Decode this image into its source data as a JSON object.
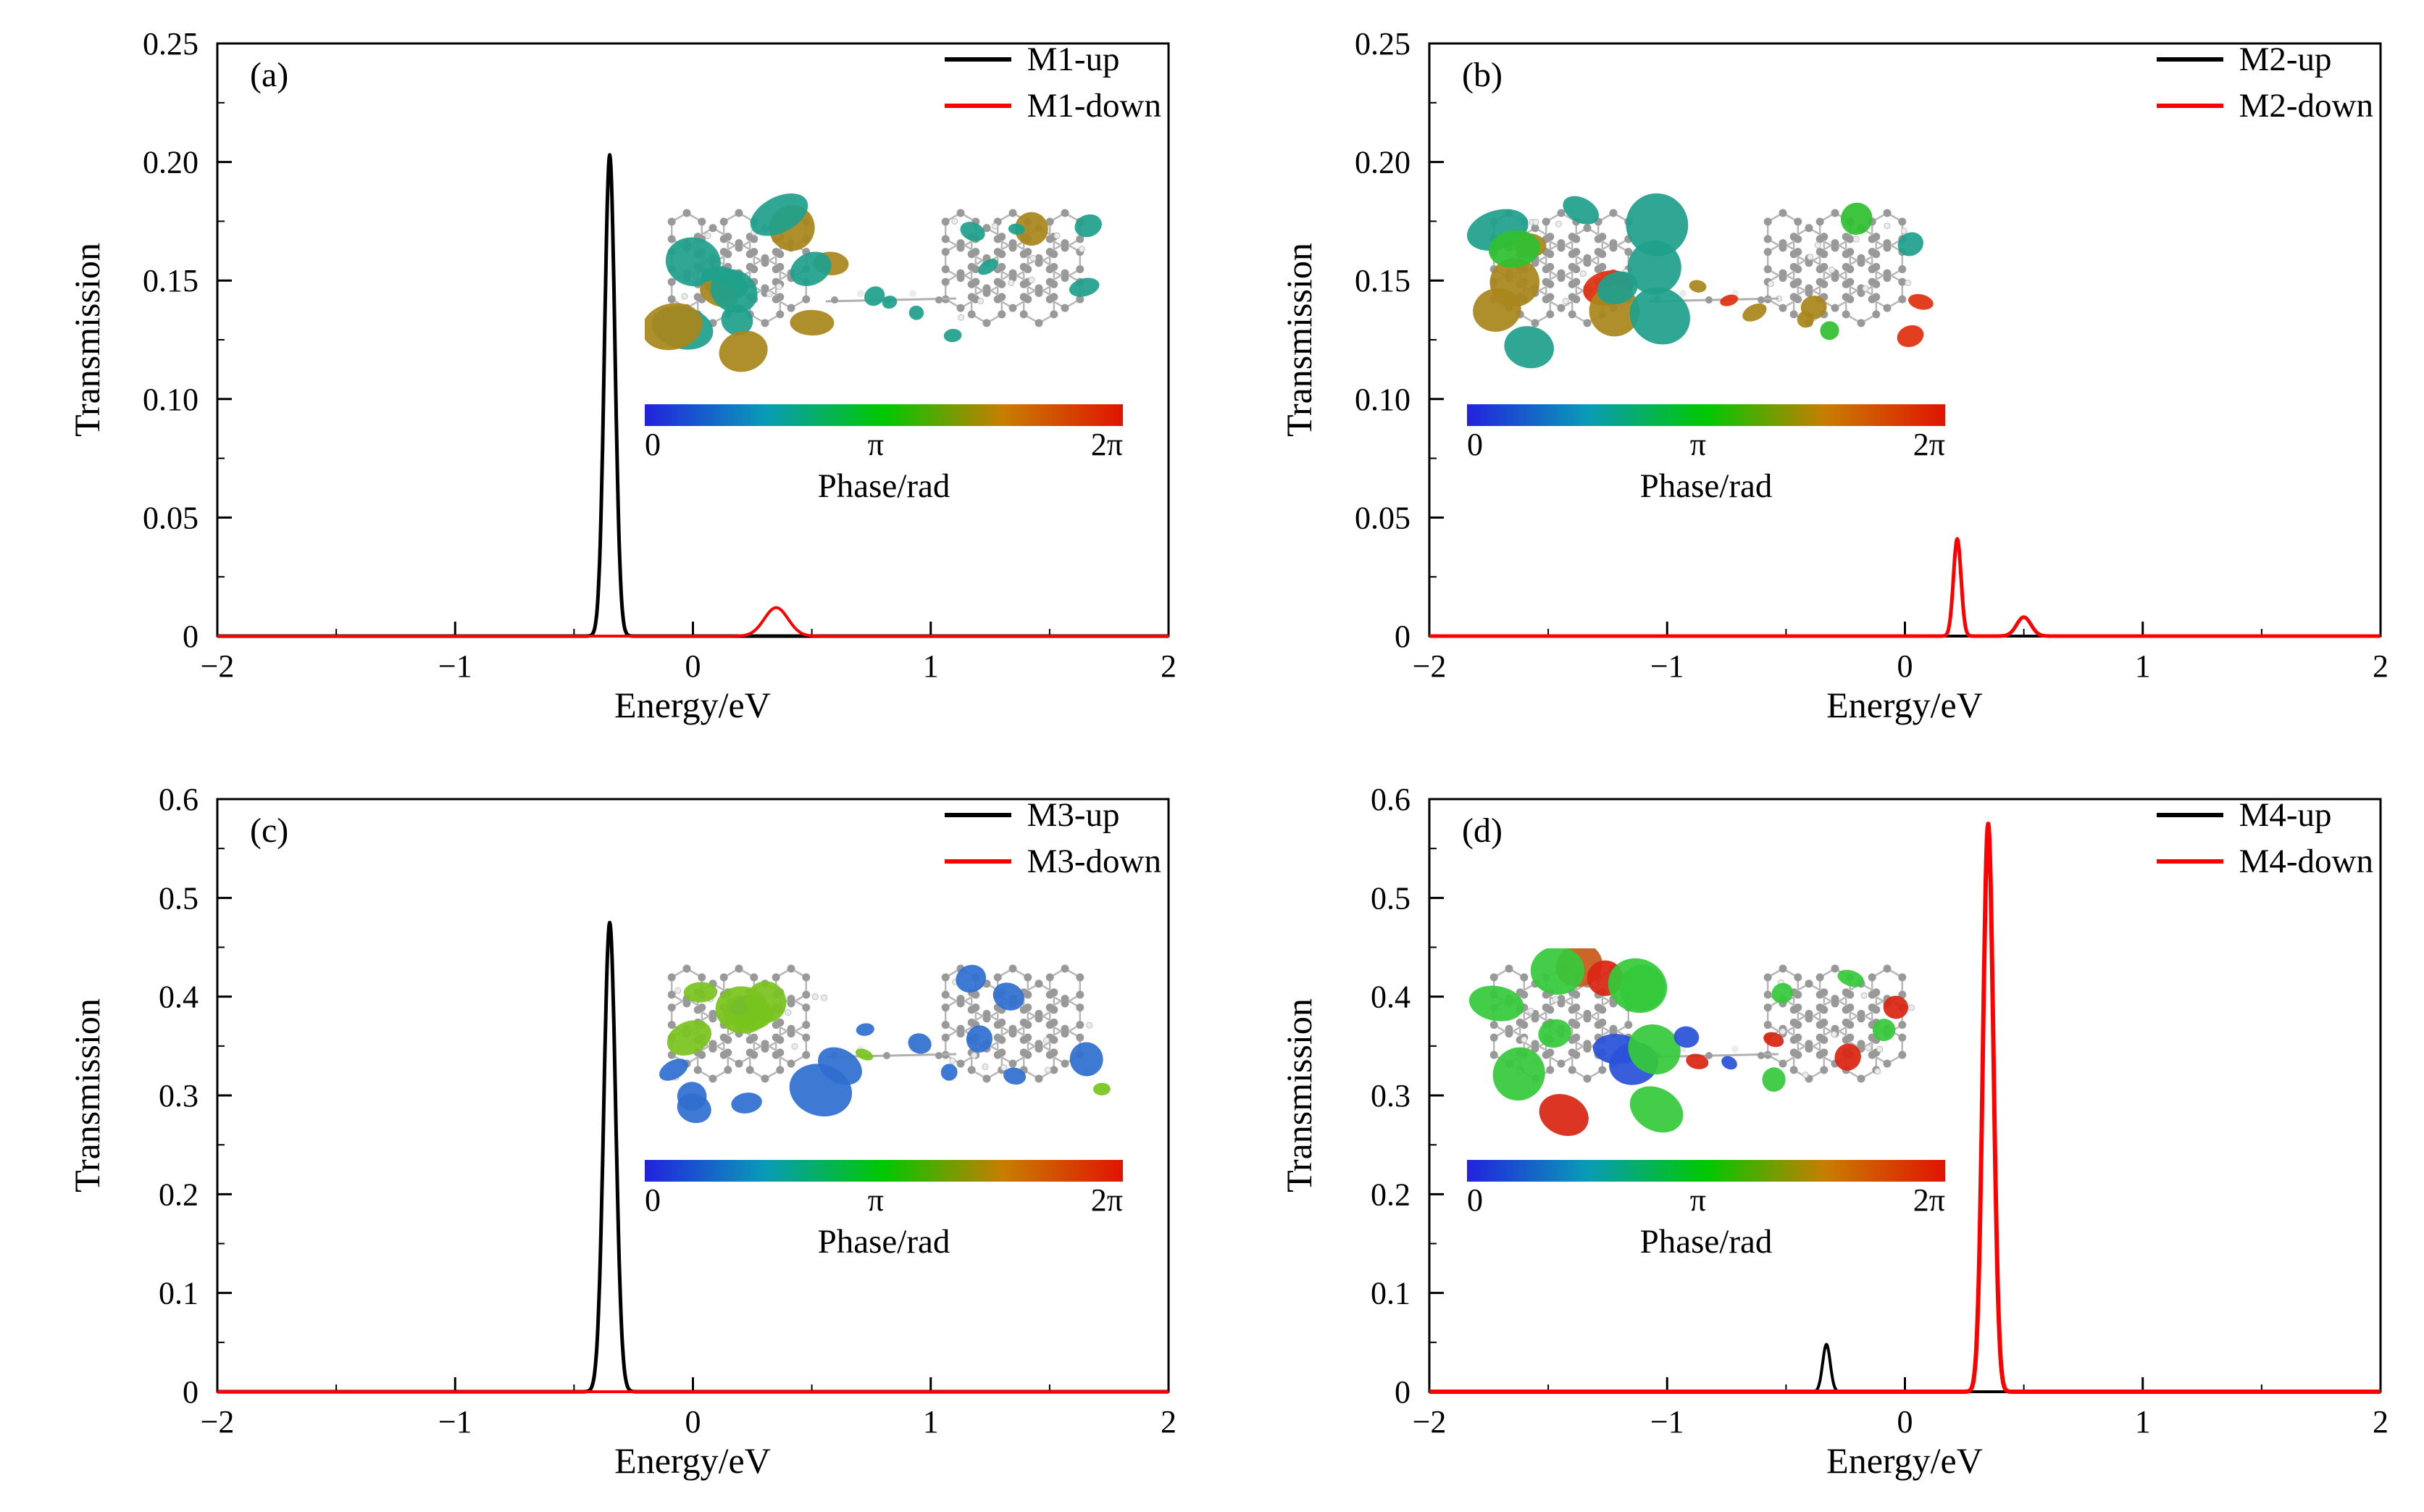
{
  "page": {
    "background": "#ffffff"
  },
  "chart_data": [
    {
      "type": "line",
      "panel_label": "(a)",
      "xlabel": "Energy/eV",
      "ylabel": "Transmission",
      "xlim": [
        -2,
        2
      ],
      "ylim": [
        0,
        0.25
      ],
      "xticks": [
        -2,
        -1,
        0,
        1,
        2
      ],
      "xtick_labels": [
        "−2",
        "−1",
        "0",
        "1",
        "2"
      ],
      "yticks": [
        0,
        0.05,
        0.1,
        0.15,
        0.2,
        0.25
      ],
      "ytick_labels": [
        "0",
        "0.05",
        "0.10",
        "0.15",
        "0.20",
        "0.25"
      ],
      "x_minor_step": 0.5,
      "y_minor_step": 0.025,
      "grid": false,
      "legend_position": "upper-right",
      "series": [
        {
          "name": "M1-up",
          "color": "#000000",
          "lw": 5,
          "peaks": [
            {
              "center": -0.35,
              "height": 0.203,
              "sigma": 0.022
            }
          ]
        },
        {
          "name": "M1-down",
          "color": "#fe0000",
          "lw": 4,
          "peaks": [
            {
              "center": 0.35,
              "height": 0.012,
              "sigma": 0.05
            }
          ]
        }
      ],
      "inset": {
        "colorbar_label": "Phase/rad",
        "colorbar_ticks": [
          "0",
          "π",
          "2π"
        ],
        "colorbar_colors": [
          "#2222dd",
          "#0a9ab8",
          "#00c800",
          "#c87d00",
          "#e01400"
        ],
        "orbital_palette": [
          "#1fa08c",
          "#a9861c"
        ]
      }
    },
    {
      "type": "line",
      "panel_label": "(b)",
      "xlabel": "Energy/eV",
      "ylabel": "Transmission",
      "xlim": [
        -2,
        2
      ],
      "ylim": [
        0,
        0.25
      ],
      "xticks": [
        -2,
        -1,
        0,
        1,
        2
      ],
      "xtick_labels": [
        "−2",
        "−1",
        "0",
        "1",
        "2"
      ],
      "yticks": [
        0,
        0.05,
        0.1,
        0.15,
        0.2,
        0.25
      ],
      "ytick_labels": [
        "0",
        "0.05",
        "0.10",
        "0.15",
        "0.20",
        "0.25"
      ],
      "x_minor_step": 0.5,
      "y_minor_step": 0.025,
      "grid": false,
      "legend_position": "upper-right",
      "series": [
        {
          "name": "M2-up",
          "color": "#000000",
          "lw": 4,
          "peaks": []
        },
        {
          "name": "M2-down",
          "color": "#fe0000",
          "lw": 5,
          "peaks": [
            {
              "center": 0.22,
              "height": 0.041,
              "sigma": 0.016
            },
            {
              "center": 0.5,
              "height": 0.008,
              "sigma": 0.03
            }
          ]
        }
      ],
      "inset": {
        "colorbar_label": "Phase/rad",
        "colorbar_ticks": [
          "0",
          "π",
          "2π"
        ],
        "colorbar_colors": [
          "#2222dd",
          "#0a9ab8",
          "#00c800",
          "#c87d00",
          "#e01400"
        ],
        "orbital_palette": [
          "#1fa08c",
          "#a9861c",
          "#e03010",
          "#30c030"
        ]
      }
    },
    {
      "type": "line",
      "panel_label": "(c)",
      "xlabel": "Energy/eV",
      "ylabel": "Transmission",
      "xlim": [
        -2,
        2
      ],
      "ylim": [
        0,
        0.6
      ],
      "xticks": [
        -2,
        -1,
        0,
        1,
        2
      ],
      "xtick_labels": [
        "−2",
        "−1",
        "0",
        "1",
        "2"
      ],
      "yticks": [
        0,
        0.1,
        0.2,
        0.3,
        0.4,
        0.5,
        0.6
      ],
      "ytick_labels": [
        "0",
        "0.1",
        "0.2",
        "0.3",
        "0.4",
        "0.5",
        "0.6"
      ],
      "x_minor_step": 0.5,
      "y_minor_step": 0.05,
      "grid": false,
      "legend_position": "upper-right",
      "series": [
        {
          "name": "M3-up",
          "color": "#000000",
          "lw": 5,
          "peaks": [
            {
              "center": -0.35,
              "height": 0.475,
              "sigma": 0.025
            }
          ]
        },
        {
          "name": "M3-down",
          "color": "#fe0000",
          "lw": 4,
          "peaks": []
        }
      ],
      "inset": {
        "colorbar_label": "Phase/rad",
        "colorbar_ticks": [
          "0",
          "π",
          "2π"
        ],
        "colorbar_colors": [
          "#2222dd",
          "#0a9ab8",
          "#00c800",
          "#c87d00",
          "#e01400"
        ],
        "orbital_palette": [
          "#2f6fd0",
          "#79c41e"
        ]
      }
    },
    {
      "type": "line",
      "panel_label": "(d)",
      "xlabel": "Energy/eV",
      "ylabel": "Transmission",
      "xlim": [
        -2,
        2
      ],
      "ylim": [
        0,
        0.6
      ],
      "xticks": [
        -2,
        -1,
        0,
        1,
        2
      ],
      "xtick_labels": [
        "−2",
        "−1",
        "0",
        "1",
        "2"
      ],
      "yticks": [
        0,
        0.1,
        0.2,
        0.3,
        0.4,
        0.5,
        0.6
      ],
      "ytick_labels": [
        "0",
        "0.1",
        "0.2",
        "0.3",
        "0.4",
        "0.5",
        "0.6"
      ],
      "x_minor_step": 0.5,
      "y_minor_step": 0.05,
      "grid": false,
      "legend_position": "upper-right",
      "series": [
        {
          "name": "M4-up",
          "color": "#000000",
          "lw": 4,
          "peaks": [
            {
              "center": -0.33,
              "height": 0.048,
              "sigma": 0.016
            }
          ]
        },
        {
          "name": "M4-down",
          "color": "#fe0000",
          "lw": 6,
          "peaks": [
            {
              "center": 0.35,
              "height": 0.575,
              "sigma": 0.022
            }
          ]
        }
      ],
      "inset": {
        "colorbar_label": "Phase/rad",
        "colorbar_ticks": [
          "0",
          "π",
          "2π"
        ],
        "colorbar_colors": [
          "#2222dd",
          "#0a9ab8",
          "#00c800",
          "#c87d00",
          "#e01400"
        ],
        "orbital_palette": [
          "#35c93a",
          "#c8591a",
          "#d92613",
          "#2a52d8"
        ]
      }
    }
  ]
}
